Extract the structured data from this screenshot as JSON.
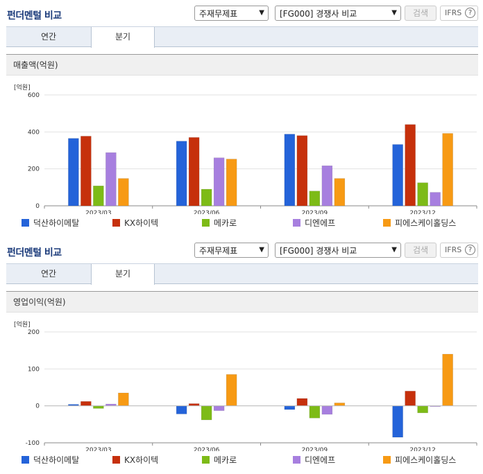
{
  "colors": {
    "s1": "#2463d9",
    "s2": "#c6300b",
    "s3": "#7dbb17",
    "s4": "#a77fdf",
    "s5": "#f79a14"
  },
  "sections": [
    {
      "title": "펀더멘털 비교",
      "select_a": "주재무제표",
      "select_b": "[FG000] 경쟁사 비교",
      "search_label": "검색",
      "ifrs_label": "IFRS",
      "help_glyph": "?",
      "tab_annual": "연간",
      "tab_quarter": "분기",
      "chart_title": "매출액(억원)",
      "unit_label": "[억원]"
    },
    {
      "title": "펀더멘털 비교",
      "select_a": "주재무제표",
      "select_b": "[FG000] 경쟁사 비교",
      "search_label": "검색",
      "ifrs_label": "IFRS",
      "help_glyph": "?",
      "tab_annual": "연간",
      "tab_quarter": "분기",
      "chart_title": "영업이익(억원)",
      "unit_label": "[억원]"
    }
  ],
  "legend": [
    "덕산하이메탈",
    "KX하이텍",
    "메카로",
    "디엔에프",
    "피에스케이홀딩스"
  ],
  "chart_data": [
    {
      "type": "bar",
      "title": "매출액(억원)",
      "ylabel": "[억원]",
      "categories": [
        "2023/03",
        "2023/06",
        "2023/09",
        "2023/12"
      ],
      "ylim": [
        0,
        600
      ],
      "yticks": [
        0,
        200,
        400,
        600
      ],
      "series": [
        {
          "name": "덕산하이메탈",
          "values": [
            365,
            350,
            388,
            332
          ]
        },
        {
          "name": "KX하이텍",
          "values": [
            377,
            370,
            380,
            440
          ]
        },
        {
          "name": "메카로",
          "values": [
            108,
            90,
            80,
            125
          ]
        },
        {
          "name": "디엔에프",
          "values": [
            288,
            260,
            217,
            73
          ]
        },
        {
          "name": "피에스케이홀딩스",
          "values": [
            148,
            253,
            148,
            392
          ]
        }
      ]
    },
    {
      "type": "bar",
      "title": "영업이익(억원)",
      "ylabel": "[억원]",
      "categories": [
        "2023/03",
        "2023/06",
        "2023/09",
        "2023/12"
      ],
      "ylim": [
        -100,
        200
      ],
      "yticks": [
        -100,
        0,
        100,
        200
      ],
      "series": [
        {
          "name": "덕산하이메탈",
          "values": [
            4,
            -22,
            -10,
            -85
          ]
        },
        {
          "name": "KX하이텍",
          "values": [
            12,
            6,
            20,
            40
          ]
        },
        {
          "name": "메카로",
          "values": [
            -7,
            -38,
            -33,
            -19
          ]
        },
        {
          "name": "디엔에프",
          "values": [
            5,
            -13,
            -23,
            0
          ]
        },
        {
          "name": "피에스케이홀딩스",
          "values": [
            35,
            85,
            8,
            140
          ]
        }
      ]
    }
  ]
}
